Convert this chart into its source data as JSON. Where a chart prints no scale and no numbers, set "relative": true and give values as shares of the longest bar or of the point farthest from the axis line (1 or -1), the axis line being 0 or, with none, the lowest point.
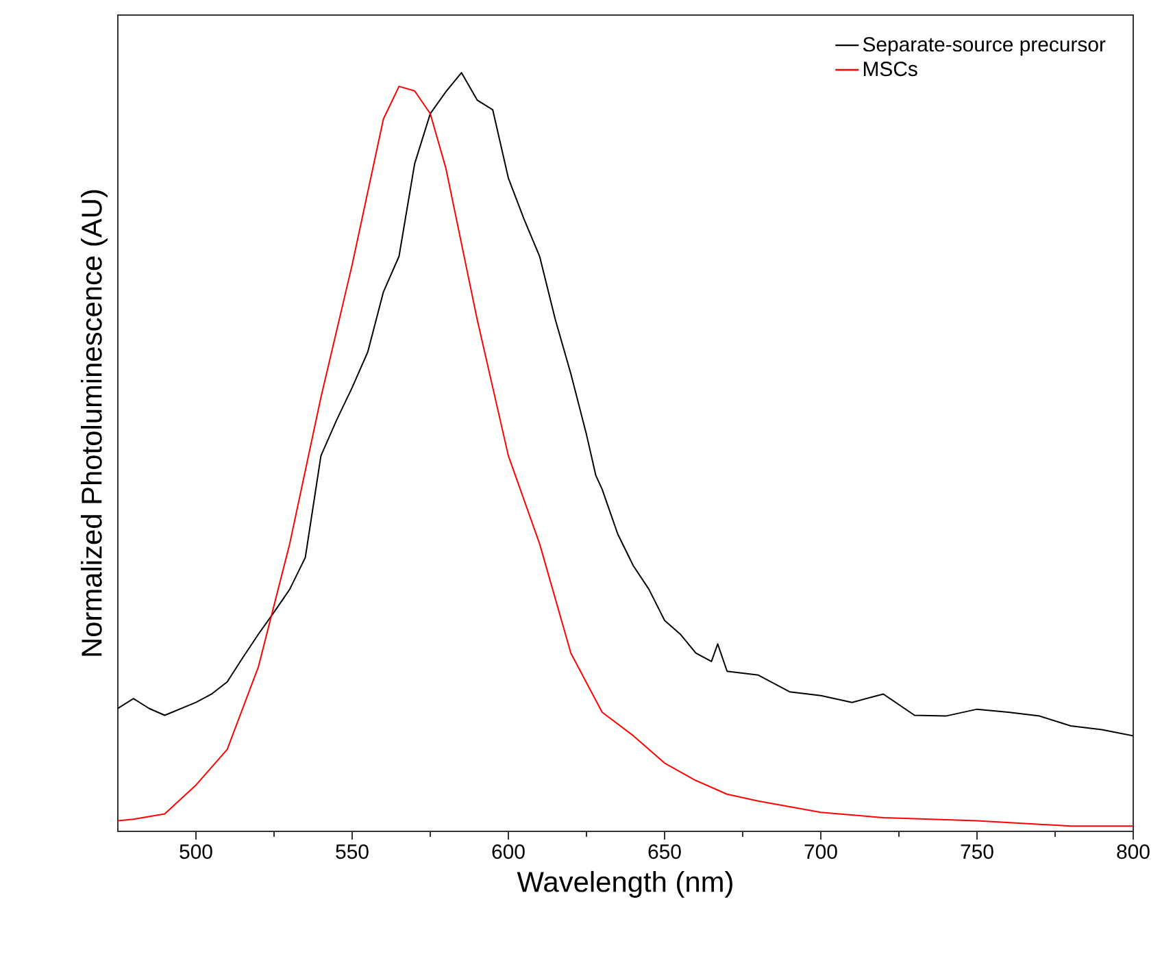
{
  "chart_data": {
    "type": "line",
    "xlabel": "Wavelength (nm)",
    "ylabel": "Normalized Photoluminescence (AU)",
    "relative": true,
    "xlim": [
      475,
      800
    ],
    "xticks": [
      500,
      550,
      600,
      650,
      700,
      750,
      800
    ],
    "legend": "top right",
    "grid": false,
    "marker": "none",
    "line_style": "solid",
    "series": [
      {
        "name": "Separate-source precursor",
        "color": "#000000",
        "x": [
          475,
          480,
          485,
          490,
          500,
          505,
          510,
          515,
          520,
          525,
          530,
          535,
          540,
          545,
          550,
          555,
          560,
          565,
          570,
          575,
          580,
          585,
          590,
          595,
          600,
          605,
          610,
          615,
          620,
          625,
          628,
          630,
          635,
          640,
          645,
          650,
          655,
          660,
          665,
          667,
          670,
          680,
          690,
          700,
          710,
          720,
          730,
          740,
          750,
          760,
          770,
          780,
          790,
          800
        ],
        "values": [
          0.162,
          0.175,
          0.162,
          0.153,
          0.17,
          0.181,
          0.197,
          0.229,
          0.26,
          0.289,
          0.319,
          0.361,
          0.495,
          0.542,
          0.585,
          0.632,
          0.711,
          0.758,
          0.88,
          0.946,
          0.975,
          1.0,
          0.964,
          0.951,
          0.861,
          0.807,
          0.758,
          0.675,
          0.603,
          0.523,
          0.469,
          0.451,
          0.392,
          0.35,
          0.319,
          0.278,
          0.26,
          0.235,
          0.224,
          0.247,
          0.211,
          0.206,
          0.184,
          0.179,
          0.17,
          0.181,
          0.153,
          0.152,
          0.161,
          0.157,
          0.152,
          0.139,
          0.134,
          0.126
        ]
      },
      {
        "name": "MSCs",
        "color": "#ff0000",
        "x": [
          475,
          480,
          490,
          500,
          510,
          520,
          530,
          540,
          550,
          560,
          565,
          570,
          575,
          580,
          590,
          600,
          610,
          620,
          630,
          640,
          650,
          660,
          670,
          680,
          700,
          720,
          750,
          780,
          800
        ],
        "values": [
          0.014,
          0.016,
          0.023,
          0.061,
          0.108,
          0.217,
          0.379,
          0.572,
          0.747,
          0.939,
          0.982,
          0.976,
          0.946,
          0.874,
          0.675,
          0.495,
          0.379,
          0.235,
          0.157,
          0.126,
          0.09,
          0.067,
          0.049,
          0.04,
          0.025,
          0.018,
          0.014,
          0.007,
          0.007
        ]
      }
    ]
  }
}
